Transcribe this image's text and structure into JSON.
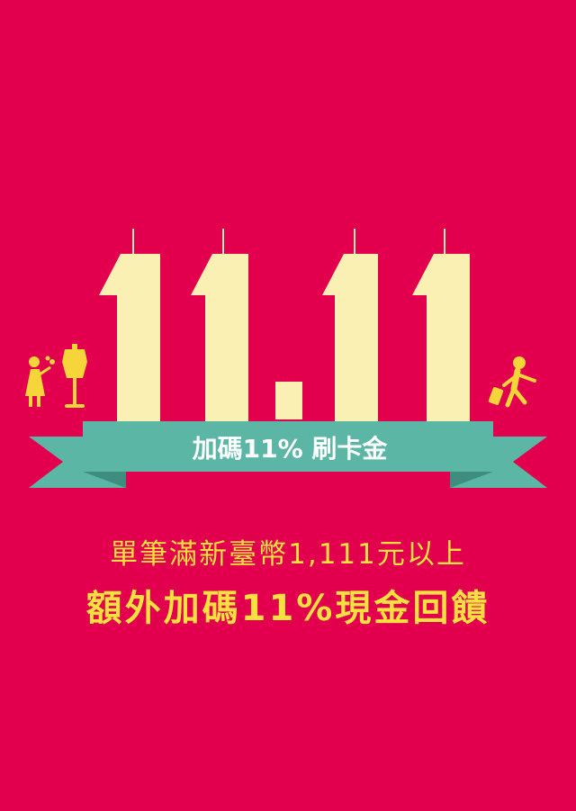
{
  "poster": {
    "big_number": "11.11",
    "ribbon_text": "加碼11% 刷卡金",
    "line1": "單筆滿新臺幣1,111元以上",
    "line2": "額外加碼11%現金回饋"
  },
  "colors": {
    "background": "#e2004e",
    "digits": "#fbf0b4",
    "ribbon": "#5cb6a6",
    "ribbon_dark": "#3e8d7e",
    "text_accent": "#f7e03f"
  },
  "icons": [
    "child-with-flower-icon",
    "mannequin-icon",
    "traveler-with-luggage-icon"
  ]
}
